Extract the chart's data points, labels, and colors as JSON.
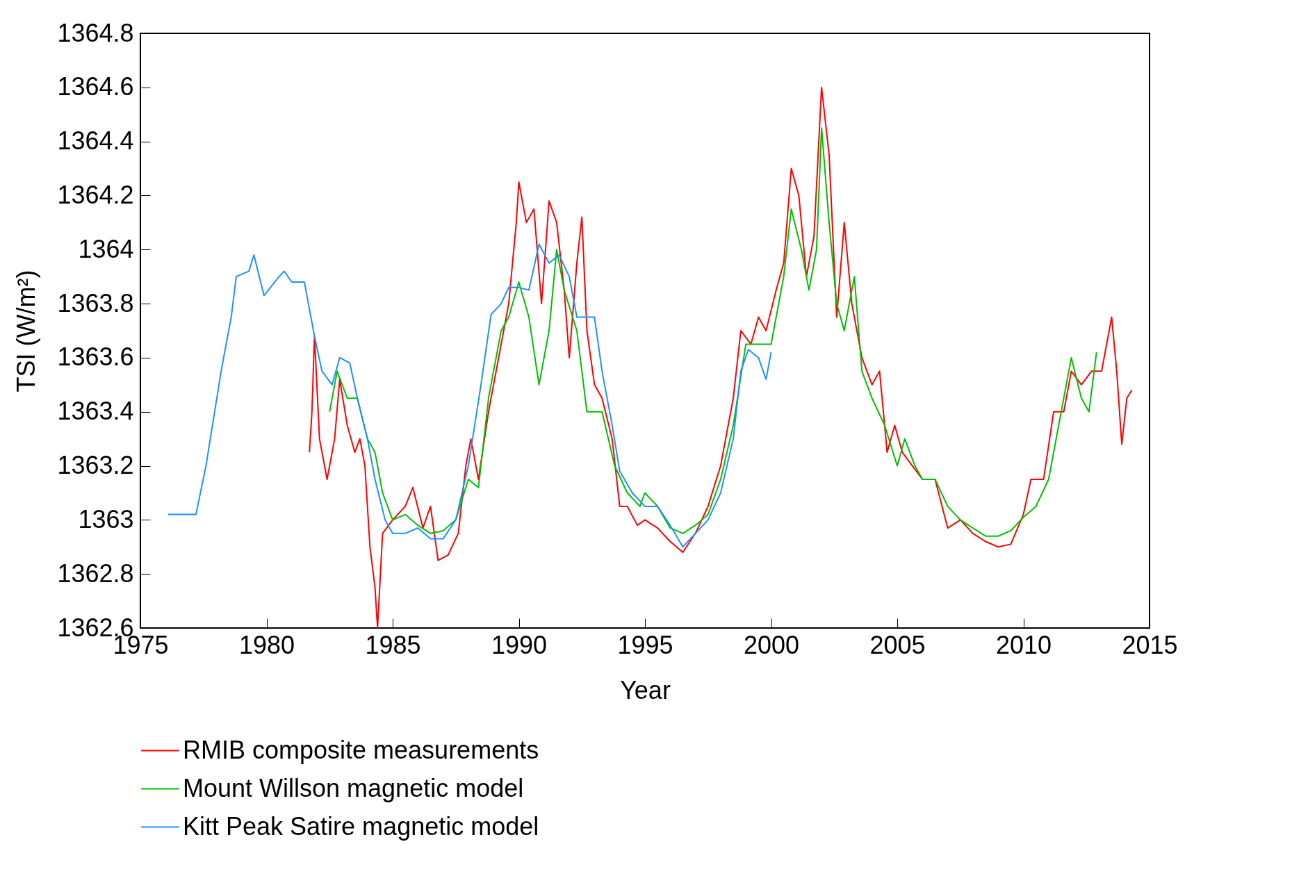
{
  "chart_data": {
    "type": "line",
    "xlabel": "Year",
    "ylabel": "TSI (W/m²)",
    "xlim": [
      1975,
      2015
    ],
    "xticks": [
      1975,
      1980,
      1985,
      1990,
      1995,
      2000,
      2005,
      2010,
      2015
    ],
    "ylim": [
      1362.6,
      1364.8
    ],
    "yticks": [
      1362.6,
      1362.8,
      1363,
      1363.2,
      1363.4,
      1363.6,
      1363.8,
      1364,
      1364.2,
      1364.4,
      1364.6,
      1364.8
    ],
    "grid": false,
    "legend": "bottom",
    "line_style": "solid",
    "marker": "none",
    "series": [
      {
        "name": "RMIB composite measurements",
        "color": "#ff0000",
        "x": [
          1981.7,
          1981.8,
          1981.9,
          1982.1,
          1982.4,
          1982.7,
          1982.9,
          1983.2,
          1983.5,
          1983.7,
          1983.9,
          1984.1,
          1984.3,
          1984.4,
          1984.6,
          1985,
          1985.5,
          1985.8,
          1986.2,
          1986.5,
          1986.8,
          1987.2,
          1987.6,
          1987.9,
          1988.1,
          1988.4,
          1988.8,
          1989.2,
          1989.6,
          1989.9,
          1990,
          1990.3,
          1990.6,
          1990.9,
          1991.2,
          1991.5,
          1991.8,
          1992,
          1992.3,
          1992.5,
          1992.7,
          1993,
          1993.3,
          1993.7,
          1994,
          1994.3,
          1994.7,
          1995,
          1995.5,
          1996,
          1996.5,
          1997,
          1997.5,
          1998,
          1998.5,
          1998.8,
          1999.2,
          1999.5,
          1999.8,
          2000.2,
          2000.5,
          2000.8,
          2001.1,
          2001.4,
          2001.7,
          2002,
          2002.3,
          2002.6,
          2002.9,
          2003.2,
          2003.6,
          2004,
          2004.3,
          2004.6,
          2004.9,
          2005.2,
          2005.6,
          2006,
          2006.5,
          2007,
          2007.5,
          2008,
          2008.5,
          2009,
          2009.5,
          2010,
          2010.3,
          2010.8,
          2011.2,
          2011.6,
          2011.9,
          2012.3,
          2012.7,
          2013.1,
          2013.5,
          2013.7,
          2013.9,
          2014.1,
          2014.3
        ],
        "values": [
          1363.25,
          1363.4,
          1363.68,
          1363.3,
          1363.15,
          1363.3,
          1363.52,
          1363.35,
          1363.25,
          1363.3,
          1363.2,
          1362.9,
          1362.75,
          1362.6,
          1362.95,
          1363,
          1363.05,
          1363.12,
          1362.97,
          1363.05,
          1362.85,
          1362.87,
          1362.95,
          1363.2,
          1363.3,
          1363.15,
          1363.4,
          1363.6,
          1363.8,
          1364.1,
          1364.25,
          1364.1,
          1364.15,
          1363.8,
          1364.18,
          1364.1,
          1363.85,
          1363.6,
          1363.95,
          1364.12,
          1363.7,
          1363.5,
          1363.45,
          1363.3,
          1363.05,
          1363.05,
          1362.98,
          1363,
          1362.97,
          1362.92,
          1362.88,
          1362.95,
          1363.05,
          1363.2,
          1363.45,
          1363.7,
          1363.65,
          1363.75,
          1363.7,
          1363.85,
          1363.95,
          1364.3,
          1364.2,
          1363.9,
          1364.05,
          1364.6,
          1364.35,
          1363.75,
          1364.1,
          1363.8,
          1363.6,
          1363.5,
          1363.55,
          1363.25,
          1363.35,
          1363.25,
          1363.2,
          1363.15,
          1363.15,
          1362.97,
          1363,
          1362.95,
          1362.92,
          1362.9,
          1362.91,
          1363.02,
          1363.15,
          1363.15,
          1363.4,
          1363.4,
          1363.55,
          1363.5,
          1363.55,
          1363.55,
          1363.75,
          1363.55,
          1363.28,
          1363.45,
          1363.48
        ]
      },
      {
        "name": "Mount Willson magnetic model",
        "color": "#00c000",
        "x": [
          1982.5,
          1982.8,
          1983.2,
          1983.6,
          1984,
          1984.3,
          1984.6,
          1985,
          1985.5,
          1986,
          1986.5,
          1987,
          1987.5,
          1988,
          1988.4,
          1988.8,
          1989.3,
          1989.6,
          1990,
          1990.4,
          1990.8,
          1991.2,
          1991.5,
          1991.8,
          1992.3,
          1992.7,
          1993.3,
          1993.8,
          1994.3,
          1994.8,
          1995,
          1995.5,
          1996,
          1996.5,
          1997,
          1997.5,
          1998,
          1998.5,
          1999,
          1999.5,
          2000,
          2000.5,
          2000.8,
          2001.2,
          2001.5,
          2001.8,
          2002,
          2002.3,
          2002.6,
          2002.9,
          2003.3,
          2003.6,
          2004,
          2004.5,
          2005,
          2005.3,
          2005.7,
          2006,
          2006.5,
          2007,
          2007.5,
          2008,
          2008.5,
          2009,
          2009.5,
          2010,
          2010.5,
          2011,
          2011.3,
          2011.6,
          2011.9,
          2012.3,
          2012.6,
          2012.9
        ],
        "values": [
          1363.4,
          1363.55,
          1363.45,
          1363.45,
          1363.3,
          1363.25,
          1363.1,
          1363,
          1363.02,
          1362.98,
          1362.95,
          1362.96,
          1363,
          1363.15,
          1363.12,
          1363.45,
          1363.7,
          1363.75,
          1363.88,
          1363.75,
          1363.5,
          1363.7,
          1364,
          1363.85,
          1363.7,
          1363.4,
          1363.4,
          1363.2,
          1363.1,
          1363.05,
          1363.1,
          1363.05,
          1362.97,
          1362.95,
          1362.98,
          1363.02,
          1363.15,
          1363.35,
          1363.65,
          1363.65,
          1363.65,
          1363.9,
          1364.15,
          1364,
          1363.85,
          1364,
          1364.45,
          1364.1,
          1363.8,
          1363.7,
          1363.9,
          1363.55,
          1363.45,
          1363.35,
          1363.2,
          1363.3,
          1363.2,
          1363.15,
          1363.15,
          1363.05,
          1363,
          1362.97,
          1362.94,
          1362.94,
          1362.96,
          1363.01,
          1363.05,
          1363.15,
          1363.3,
          1363.45,
          1363.6,
          1363.45,
          1363.4,
          1363.62
        ]
      },
      {
        "name": "Kitt Peak Satire magnetic model",
        "color": "#1e90ff",
        "x": [
          1976.1,
          1977.2,
          1977.6,
          1978.2,
          1978.6,
          1978.8,
          1979.3,
          1979.5,
          1979.9,
          1980.5,
          1980.7,
          1981,
          1981.5,
          1981.7,
          1981.9,
          1982.2,
          1982.6,
          1982.9,
          1983.3,
          1983.6,
          1984,
          1984.3,
          1984.7,
          1985,
          1985.5,
          1986,
          1986.5,
          1987,
          1987.5,
          1988,
          1988.5,
          1988.9,
          1989.3,
          1989.6,
          1990,
          1990.4,
          1990.8,
          1991.2,
          1991.6,
          1992,
          1992.3,
          1993,
          1993.3,
          1993.7,
          1994,
          1994.5,
          1995,
          1995.5,
          1996,
          1996.5,
          1997,
          1997.5,
          1998,
          1998.5,
          1998.8,
          1999.1,
          1999.5,
          1999.8,
          2000
        ],
        "values": [
          1363.02,
          1363.02,
          1363.2,
          1363.55,
          1363.75,
          1363.9,
          1363.92,
          1363.98,
          1363.83,
          1363.9,
          1363.92,
          1363.88,
          1363.88,
          1363.78,
          1363.68,
          1363.55,
          1363.5,
          1363.6,
          1363.58,
          1363.45,
          1363.3,
          1363.15,
          1363,
          1362.95,
          1362.95,
          1362.97,
          1362.93,
          1362.93,
          1363,
          1363.2,
          1363.5,
          1363.76,
          1363.8,
          1363.86,
          1363.86,
          1363.85,
          1364.02,
          1363.95,
          1363.98,
          1363.9,
          1363.75,
          1363.75,
          1363.55,
          1363.35,
          1363.18,
          1363.1,
          1363.05,
          1363.05,
          1362.98,
          1362.9,
          1362.95,
          1363,
          1363.1,
          1363.3,
          1363.55,
          1363.63,
          1363.6,
          1363.52,
          1363.62
        ]
      }
    ]
  }
}
